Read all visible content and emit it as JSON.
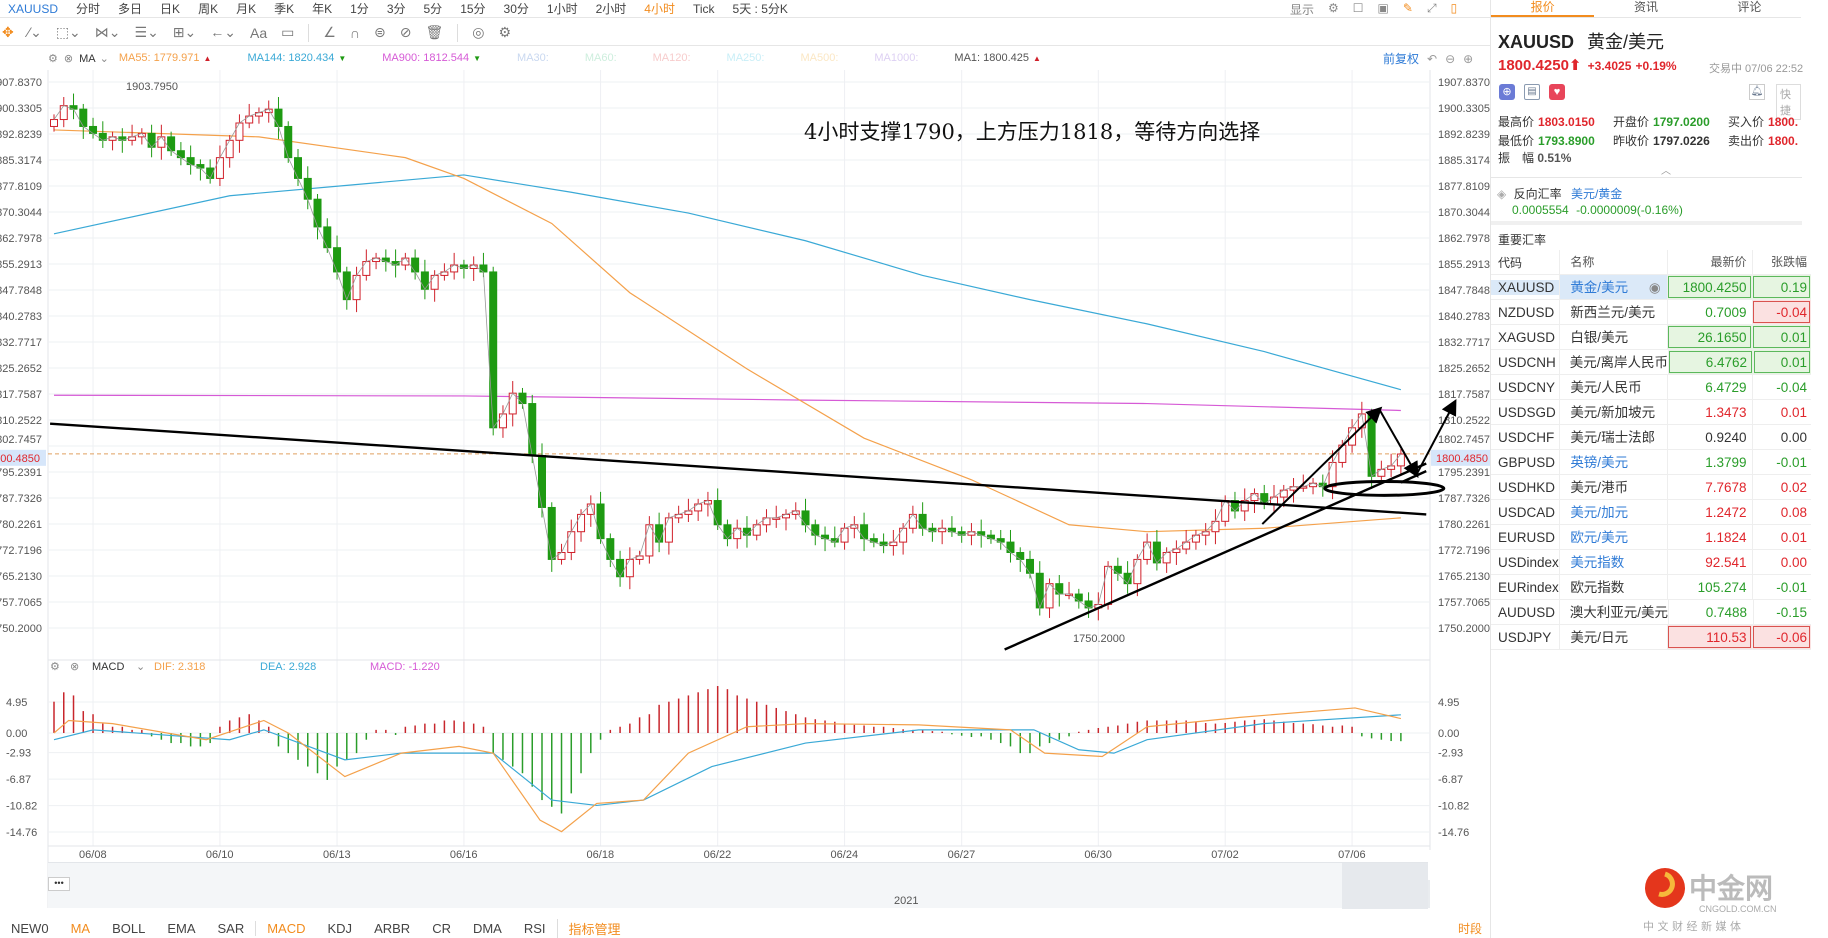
{
  "topbar": {
    "symbol": "XAUUSD",
    "periods": [
      "分时",
      "多日",
      "日K",
      "周K",
      "月K",
      "季K",
      "年K",
      "1分",
      "3分",
      "5分",
      "15分",
      "30分",
      "1小时",
      "2小时",
      "4小时",
      "Tick",
      "5天 : 5分K"
    ],
    "active_period": "4小时",
    "display_label": "显示"
  },
  "toolbar": {
    "icons": [
      "move-icon",
      "line-tool-icon",
      "rect-tool-icon",
      "fib-tool-icon",
      "text-list-icon",
      "measure-icon",
      "arrow-icon",
      "text-tool-icon",
      "comment-icon",
      "angle-icon",
      "magnet-icon",
      "lock-icon",
      "hide-icon",
      "delete-icon",
      "compare-icon",
      "settings-icon"
    ],
    "text_tool": "Aa"
  },
  "ma_legend": {
    "name": "MA",
    "items": [
      {
        "label": "MA55: 1779.971",
        "color": "#f4a14b",
        "arrow": "▲"
      },
      {
        "label": "MA144: 1820.434",
        "color": "#3aa9d6",
        "arrow": "▼"
      },
      {
        "label": "MA900: 1812.544",
        "color": "#d65ad6",
        "arrow": "▼"
      },
      {
        "label": "MA30:",
        "color": "#c9d8f0"
      },
      {
        "label": "MA60:",
        "color": "#cdeedd"
      },
      {
        "label": "MA120:",
        "color": "#f7cccc"
      },
      {
        "label": "MA250:",
        "color": "#c8eef7"
      },
      {
        "label": "MA500:",
        "color": "#fbe7c4"
      },
      {
        "label": "MA1000:",
        "color": "#ddd0f3"
      },
      {
        "label": "MA1: 1800.425",
        "color": "#555",
        "arrow": "▲"
      }
    ],
    "adjust_label": "前复权"
  },
  "annotation": "4小时支撑1790，上方压力1818，等待方向选择",
  "chart_data": [
    {
      "type": "candlestick",
      "symbol": "XAUUSD",
      "period": "4小时",
      "ylim": [
        1750.2,
        1907.837
      ],
      "y_ticks": [
        "1907.8370",
        "1900.3305",
        "1892.8239",
        "1885.3174",
        "1877.8109",
        "1870.3044",
        "1862.7978",
        "1855.2913",
        "1847.7848",
        "1840.2783",
        "1832.7717",
        "1825.2652",
        "1817.7587",
        "1810.2522",
        "1802.7457",
        "1795.2391",
        "1787.7326",
        "1780.2261",
        "1772.7196",
        "1765.2130",
        "1757.7065",
        "1750.2000"
      ],
      "current_price": "1800.4850",
      "high_label": "1903.7950",
      "low_label": "1750.2000",
      "x_ticks": [
        {
          "label": "06/08",
          "candle": 4
        },
        {
          "label": "06/10",
          "candle": 17
        },
        {
          "label": "06/13",
          "candle": 29
        },
        {
          "label": "06/16",
          "candle": 42
        },
        {
          "label": "06/18",
          "candle": 56
        },
        {
          "label": "06/22",
          "candle": 68
        },
        {
          "label": "06/24",
          "candle": 81
        },
        {
          "label": "06/27",
          "candle": 93
        },
        {
          "label": "06/30",
          "candle": 107
        },
        {
          "label": "07/02",
          "candle": 120
        },
        {
          "label": "07/06",
          "candle": 133
        }
      ],
      "closes": [
        1897,
        1901,
        1900,
        1895,
        1893,
        1891,
        1892,
        1891,
        1892,
        1893,
        1889,
        1892,
        1888,
        1886,
        1884,
        1883,
        1880,
        1886,
        1891,
        1896,
        1898,
        1899,
        1900,
        1895,
        1886,
        1880,
        1874,
        1866,
        1860,
        1853,
        1845,
        1852,
        1856,
        1857,
        1856,
        1855,
        1857,
        1853,
        1848,
        1852,
        1853,
        1855,
        1854,
        1855,
        1853,
        1808,
        1812,
        1818,
        1815,
        1800,
        1785,
        1770,
        1772,
        1778,
        1783,
        1786,
        1776,
        1770,
        1765,
        1770,
        1771,
        1780,
        1775,
        1782,
        1783,
        1784,
        1786,
        1787,
        1780,
        1776,
        1779,
        1777,
        1780,
        1782,
        1782,
        1783,
        1784,
        1780,
        1777,
        1776,
        1775,
        1779,
        1780,
        1776,
        1775,
        1774,
        1775,
        1779,
        1783,
        1779,
        1778,
        1779,
        1778,
        1777,
        1778,
        1777,
        1776,
        1775,
        1772,
        1770,
        1766,
        1756,
        1763,
        1760,
        1760,
        1758,
        1756,
        1757,
        1768,
        1766,
        1763,
        1770,
        1775,
        1769,
        1772,
        1773,
        1775,
        1777,
        1778,
        1781,
        1787,
        1784,
        1787,
        1789,
        1786,
        1788,
        1790,
        1791,
        1791,
        1792,
        1791,
        1798,
        1803,
        1808,
        1812,
        1794,
        1796,
        1797,
        1800.425
      ],
      "first_open": 1895,
      "ma55": [
        [
          0,
          1894
        ],
        [
          21,
          1892
        ],
        [
          36,
          1886
        ],
        [
          42,
          1880
        ],
        [
          51,
          1867
        ],
        [
          59,
          1847
        ],
        [
          71,
          1825
        ],
        [
          83,
          1805
        ],
        [
          94,
          1793
        ],
        [
          104,
          1780
        ],
        [
          112,
          1778
        ],
        [
          124,
          1779
        ],
        [
          138,
          1782
        ]
      ],
      "ma144": [
        [
          0,
          1864
        ],
        [
          18,
          1875
        ],
        [
          30,
          1878
        ],
        [
          42,
          1881
        ],
        [
          53,
          1876
        ],
        [
          65,
          1870
        ],
        [
          77,
          1862
        ],
        [
          89,
          1852
        ],
        [
          100,
          1845
        ],
        [
          112,
          1838
        ],
        [
          124,
          1830
        ],
        [
          138,
          1819
        ]
      ],
      "ma900": [
        [
          0,
          1817.4
        ],
        [
          42,
          1817.2
        ],
        [
          77,
          1816
        ],
        [
          112,
          1815
        ],
        [
          138,
          1813
        ]
      ],
      "colors": {
        "up": "#d0202a",
        "down": "#1e9a12",
        "ma55": "#f4a14b",
        "ma144": "#3aa9d6",
        "ma900": "#d65ad6"
      },
      "drawings": {
        "lines": [
          [
            [
              -0.4,
              1809.2
            ],
            [
              140.6,
              1783
            ]
          ],
          [
            [
              97.4,
              1744
            ],
            [
              140.6,
              1797.7
            ]
          ],
          [
            [
              138,
              1792.2
            ],
            [
              140.6,
              1795.5
            ]
          ]
        ],
        "arrows": [
          [
            [
              123.8,
              1780.2
            ],
            [
              135.8,
              1813.3
            ],
            [
              139.6,
              1794.5
            ],
            [
              143.5,
              1815.3
            ]
          ]
        ],
        "ellipse": {
          "center": [
            136.3,
            1790.5
          ],
          "rx_candles": 6.1,
          "ry_price": 2
        }
      }
    },
    {
      "type": "macd",
      "legend": {
        "name": "MACD",
        "dif": "DIF: 2.318",
        "dea": "DEA: 2.928",
        "macd": "MACD: -1.220"
      },
      "ylim": [
        -14.76,
        4.95
      ],
      "y_ticks": [
        "4.95",
        "0.00",
        "-2.93",
        "-6.87",
        "-10.82",
        "-14.76"
      ],
      "dif": [
        [
          0,
          0
        ],
        [
          1.5,
          2
        ],
        [
          6,
          1.5
        ],
        [
          15.6,
          -1
        ],
        [
          21.5,
          2
        ],
        [
          24,
          0
        ],
        [
          29.8,
          -6.5
        ],
        [
          35.6,
          -3
        ],
        [
          41.5,
          -2
        ],
        [
          45,
          -3
        ],
        [
          49.8,
          -13
        ],
        [
          52,
          -14.7
        ],
        [
          55.6,
          -10.5
        ],
        [
          60.4,
          -10
        ],
        [
          65,
          -3
        ],
        [
          71,
          1
        ],
        [
          77,
          1.5
        ],
        [
          88.6,
          1.3
        ],
        [
          98,
          0.5
        ],
        [
          101.5,
          -3
        ],
        [
          107.4,
          -3.5
        ],
        [
          112,
          1
        ],
        [
          121.5,
          2.5
        ],
        [
          133.3,
          4
        ],
        [
          138,
          2.3
        ]
      ],
      "dea": [
        [
          0,
          -1
        ],
        [
          4,
          0.5
        ],
        [
          18,
          -1
        ],
        [
          21.5,
          0.5
        ],
        [
          29.8,
          -4
        ],
        [
          35.6,
          -3
        ],
        [
          45,
          -3
        ],
        [
          51,
          -10
        ],
        [
          55.6,
          -10.8
        ],
        [
          60.4,
          -10
        ],
        [
          67.4,
          -5
        ],
        [
          77,
          -1.5
        ],
        [
          88.6,
          0.5
        ],
        [
          100.4,
          0.5
        ],
        [
          105,
          -2.5
        ],
        [
          108.6,
          -3
        ],
        [
          112,
          -1
        ],
        [
          123.9,
          1.5
        ],
        [
          138,
          2.9
        ]
      ],
      "hist": [
        5,
        6.5,
        6,
        3.5,
        3,
        1.5,
        1,
        1,
        0.5,
        0.5,
        -0.5,
        -1,
        -1.5,
        -1.5,
        -2,
        -2,
        -1.5,
        1,
        2,
        2.5,
        3,
        2,
        1,
        -2,
        -3,
        -4,
        -5,
        -6,
        -7,
        -5,
        -4,
        -3,
        -1,
        0.5,
        0.5,
        -0.3,
        1,
        1.2,
        1.5,
        1.5,
        2,
        2,
        1.8,
        1.5,
        1,
        -3,
        -4,
        -5,
        -6,
        -8,
        -10,
        -11,
        -12,
        -9,
        -6,
        -3,
        -1,
        0.5,
        1,
        1.5,
        2.5,
        3,
        4.5,
        5,
        5.5,
        6,
        6.5,
        7,
        7.5,
        7,
        6,
        5.5,
        5,
        4.5,
        4,
        3.5,
        3,
        2.5,
        2.2,
        2,
        1.8,
        1.5,
        1.3,
        1.2,
        1,
        1,
        0.8,
        0.6,
        0.5,
        0.4,
        0.3,
        0.2,
        -0.2,
        -0.4,
        -0.6,
        -0.5,
        -1,
        -1.5,
        -2,
        -3,
        -3,
        -2,
        -1.5,
        -1,
        -0.5,
        0.2,
        0.5,
        0.8,
        1,
        1.2,
        1.5,
        1.8,
        2,
        2,
        2,
        2,
        2,
        1.8,
        1.6,
        1.5,
        1.6,
        1.8,
        2,
        2.1,
        2.2,
        2,
        1.8,
        1.6,
        1.5,
        1.4,
        1.2,
        1,
        1.2,
        1,
        -0.5,
        -0.8,
        -1,
        -1.2,
        -1.22
      ],
      "colors": {
        "dif": "#f4a14b",
        "dea": "#3aa9d6",
        "hist_up": "#c8262c",
        "hist_down": "#2a9d2a"
      }
    }
  ],
  "navigator": {
    "year_label": "2021",
    "menu": "•••"
  },
  "bottom_tabs": {
    "items": [
      "NEW0",
      "MA",
      "BOLL",
      "EMA",
      "SAR",
      "MACD",
      "KDJ",
      "ARBR",
      "CR",
      "DMA",
      "RSI",
      "指标管理"
    ],
    "active": [
      "MA",
      "MACD"
    ],
    "period_label": "时段"
  },
  "right_panel": {
    "tabs": [
      "报价",
      "资讯",
      "评论"
    ],
    "symbol": "XAUUSD",
    "name": "黄金/美元",
    "price": "1800.4250",
    "change": "+3.4025",
    "change_pct": "+0.19%",
    "status": "交易中 07/06 22:52",
    "quick_label": "快捷",
    "stats": [
      {
        "label": "最高价",
        "value": "1803.0150",
        "cls": "up"
      },
      {
        "label": "开盘价",
        "value": "1797.0200",
        "cls": "dn"
      },
      {
        "label": "买入价",
        "value": "1800.",
        "cls": "up"
      },
      {
        "label": "最低价",
        "value": "1793.8900",
        "cls": "dn"
      },
      {
        "label": "昨收价",
        "value": "1797.0226",
        "cls": ""
      },
      {
        "label": "卖出价",
        "value": "1800.",
        "cls": "up"
      }
    ],
    "amplitude_label": "振　幅",
    "amplitude": "0.51%",
    "reverse": {
      "label": "反向汇率",
      "pair": "美元/黄金",
      "value": "0.0005554",
      "change": "-0.0000009(-0.16%)"
    },
    "rates_title": "重要汇率",
    "headers": [
      "代码",
      "名称",
      "最新价",
      "张跌幅"
    ],
    "rows": [
      {
        "code": "XAUUSD",
        "name": "黄金/美元",
        "price": "1800.4250",
        "chg": "0.19",
        "pc": "dn",
        "cc": "dn",
        "box": "g",
        "cbox": "g",
        "link": true,
        "sel": true
      },
      {
        "code": "NZDUSD",
        "name": "新西兰元/美元",
        "price": "0.7009",
        "chg": "-0.04",
        "pc": "dn",
        "cc": "up",
        "box": "",
        "cbox": "r"
      },
      {
        "code": "XAGUSD",
        "name": "白银/美元",
        "price": "26.1650",
        "chg": "0.01",
        "pc": "dn",
        "cc": "dn",
        "box": "g",
        "cbox": "g"
      },
      {
        "code": "USDCNH",
        "name": "美元/离岸人民币",
        "price": "6.4762",
        "chg": "0.01",
        "pc": "dn",
        "cc": "dn",
        "box": "g",
        "cbox": "g"
      },
      {
        "code": "USDCNY",
        "name": "美元/人民币",
        "price": "6.4729",
        "chg": "-0.04",
        "pc": "dn",
        "cc": "dn"
      },
      {
        "code": "USDSGD",
        "name": "美元/新加坡元",
        "price": "1.3473",
        "chg": "0.01",
        "pc": "up",
        "cc": "up"
      },
      {
        "code": "USDCHF",
        "name": "美元/瑞士法郎",
        "price": "0.9240",
        "chg": "0.00",
        "pc": "",
        "cc": ""
      },
      {
        "code": "GBPUSD",
        "name": "英镑/美元",
        "price": "1.3799",
        "chg": "-0.01",
        "pc": "dn",
        "cc": "dn",
        "link": true
      },
      {
        "code": "USDHKD",
        "name": "美元/港币",
        "price": "7.7678",
        "chg": "0.02",
        "pc": "up",
        "cc": "up"
      },
      {
        "code": "USDCAD",
        "name": "美元/加元",
        "price": "1.2472",
        "chg": "0.08",
        "pc": "up",
        "cc": "up",
        "link": true
      },
      {
        "code": "EURUSD",
        "name": "欧元/美元",
        "price": "1.1824",
        "chg": "0.01",
        "pc": "up",
        "cc": "up",
        "link": true
      },
      {
        "code": "USDindex",
        "name": "美元指数",
        "price": "92.541",
        "chg": "0.00",
        "pc": "up",
        "cc": "up",
        "link": true
      },
      {
        "code": "EURindex",
        "name": "欧元指数",
        "price": "105.274",
        "chg": "-0.01",
        "pc": "dn",
        "cc": "dn"
      },
      {
        "code": "AUDUSD",
        "name": "澳大利亚元/美元",
        "price": "0.7488",
        "chg": "-0.15",
        "pc": "dn",
        "cc": "dn"
      },
      {
        "code": "USDJPY",
        "name": "美元/日元",
        "price": "110.53",
        "chg": "-0.06",
        "pc": "up",
        "cc": "up",
        "box": "r",
        "cbox": "r"
      }
    ]
  },
  "watermark": {
    "brand": "中金网",
    "domain": "CNGOLD.COM.CN",
    "slogan": "中 文 财 经 新 媒 体"
  }
}
